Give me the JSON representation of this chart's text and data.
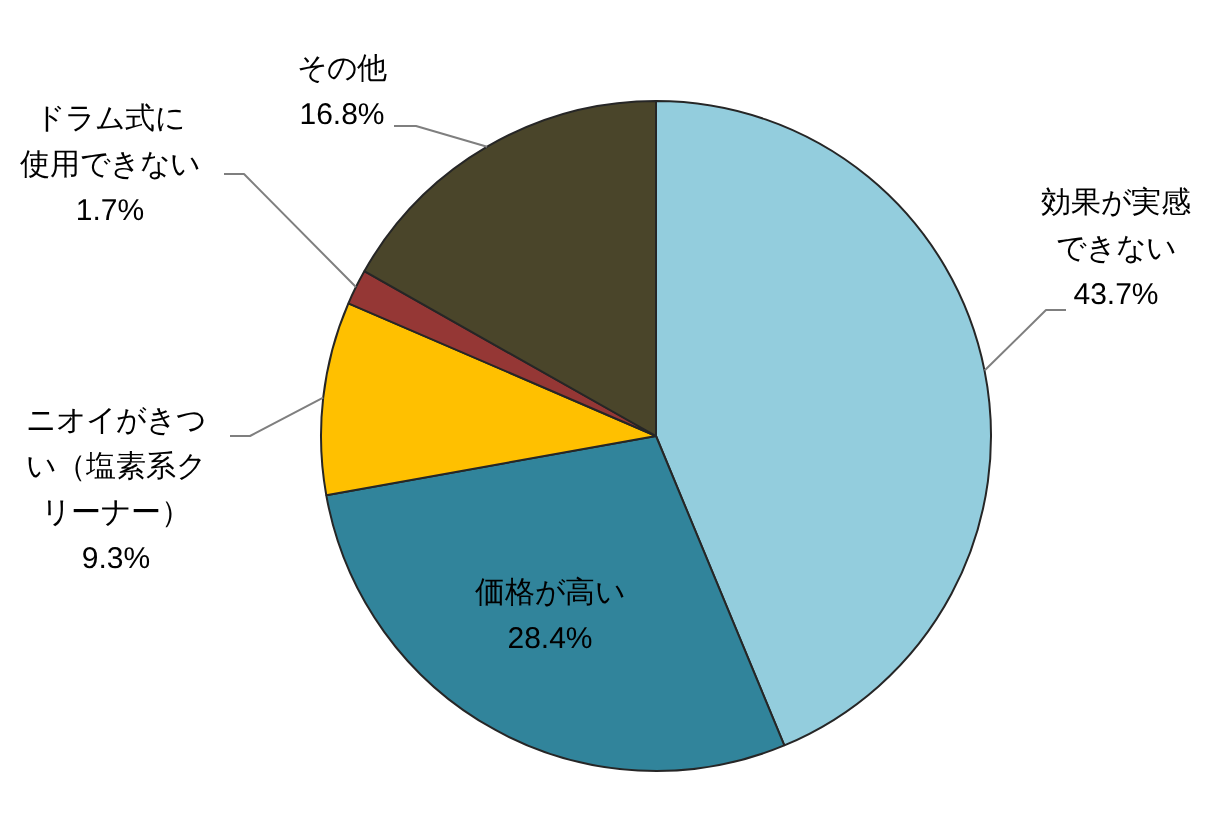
{
  "chart_data": {
    "type": "pie",
    "categories": [
      "効果が実感できない",
      "価格が高い",
      "ニオイがきつい（塩素系クリーナー）",
      "ドラム式に使用できない",
      "その他"
    ],
    "values": [
      43.7,
      28.4,
      9.3,
      1.7,
      16.8
    ],
    "colors": [
      "#93cddd",
      "#31849b",
      "#ffc000",
      "#953735",
      "#4a452a"
    ],
    "value_labels": [
      "43.7%",
      "28.4%",
      "9.3%",
      "1.7%",
      "16.8%"
    ]
  }
}
